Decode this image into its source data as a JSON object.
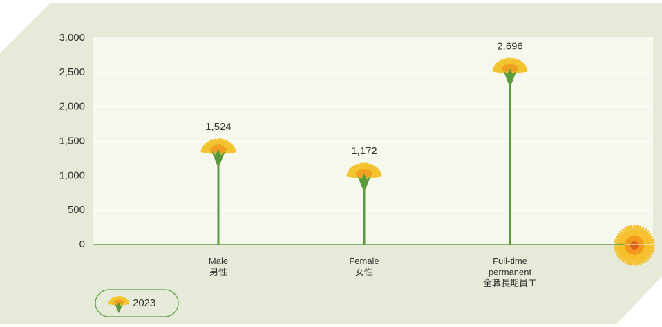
{
  "chart_data": {
    "type": "lollipop",
    "categories": [
      "Male\n男性",
      "Female\n女性",
      "Full-time\npermanent\n全職長期員工"
    ],
    "series": [
      {
        "name": "2023",
        "color": "#5b9a3c",
        "flower_color": "#f4c430",
        "values": [
          1524,
          1172,
          2696
        ],
        "value_labels": [
          "1,524",
          "1,172",
          "2,696"
        ]
      }
    ],
    "ylim": [
      0,
      3000
    ],
    "yticks": [
      0,
      500,
      {
        "value": 1000,
        "label": "1,000"
      },
      {
        "value": 1500,
        "label": "1,500"
      },
      {
        "value": 2000,
        "label": "2,000"
      },
      {
        "value": 2500,
        "label": "2,500"
      },
      {
        "value": 3000,
        "label": "3,000"
      }
    ],
    "grid": true
  }
}
